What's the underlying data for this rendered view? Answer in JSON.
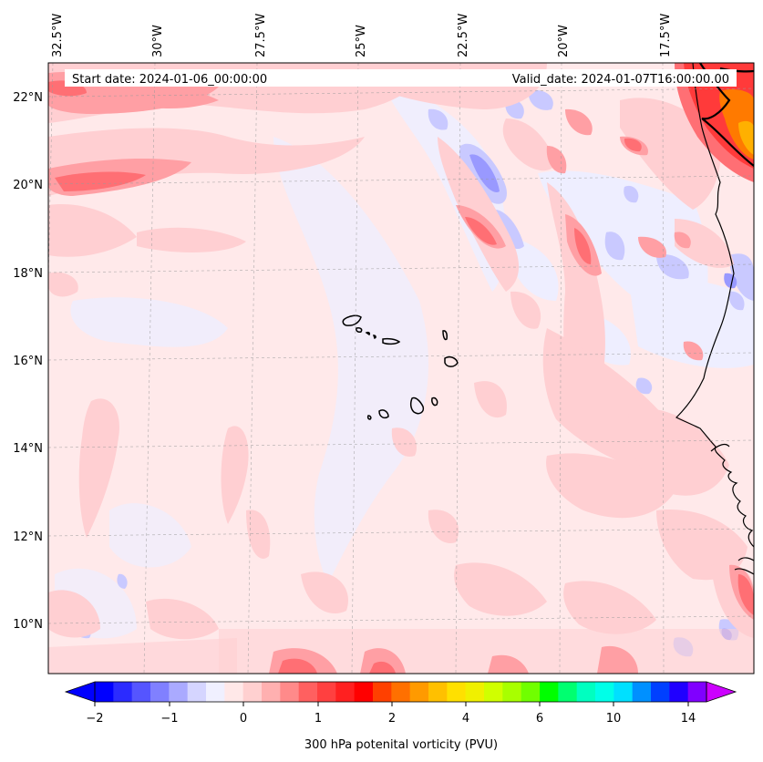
{
  "map": {
    "title_left": "Start date: 2024-01-06_00:00:00",
    "title_right": "Valid_date: 2024-01-07T16:00:00.00",
    "lon_labels": [
      "32.5°W",
      "30°W",
      "27.5°W",
      "25°W",
      "22.5°W",
      "20°W",
      "17.5°W"
    ],
    "lat_labels": [
      "22°N",
      "20°N",
      "18°N",
      "16°N",
      "14°N",
      "12°N",
      "10°N"
    ],
    "islands": "Cape Verde islands",
    "coast": "West African coastline"
  },
  "colorbar": {
    "label": "300 hPa potenital vorticity (PVU)",
    "tick_labels": [
      "−2",
      "−1",
      "0",
      "1",
      "2",
      "4",
      "6",
      "10",
      "14"
    ],
    "colors": [
      "#0000ff",
      "#2b2bff",
      "#5555ff",
      "#8080ff",
      "#aaaaff",
      "#d5d5ff",
      "#f0f0ff",
      "#ffe8e8",
      "#ffd0d0",
      "#ffb0b0",
      "#ff8a8a",
      "#ff6060",
      "#ff4040",
      "#ff2020",
      "#ff0000",
      "#ff4000",
      "#ff7000",
      "#ff9a00",
      "#ffc000",
      "#ffe000",
      "#f0f000",
      "#d0ff00",
      "#a8ff00",
      "#70ff00",
      "#00ff00",
      "#00ff70",
      "#00ffc0",
      "#00ffe8",
      "#00e0ff",
      "#0090ff",
      "#0040ff",
      "#2000ff",
      "#8000ff"
    ],
    "under_color": "#0000ff",
    "over_color": "#cc00ff"
  },
  "colors": {
    "base_fill": "#ffe9ea",
    "pale_blue": "#eeeeff",
    "light_blue": "#c9c9ff",
    "mid_blue": "#9999ff",
    "pink": "#ffcfd2",
    "mid_red": "#ff9fa4",
    "red": "#ff6f74",
    "deep_red": "#ff3a3a",
    "orange": "#ff7a00"
  }
}
